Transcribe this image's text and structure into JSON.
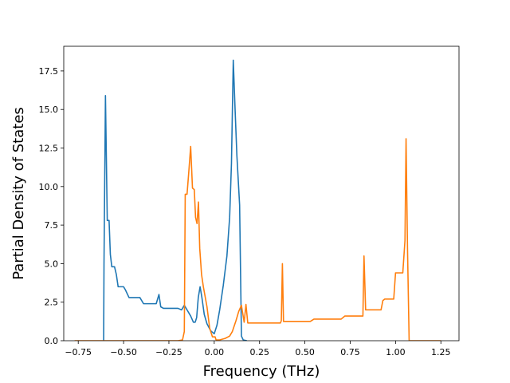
{
  "chart_data": {
    "type": "line",
    "title": "",
    "xlabel": "Frequency (THz)",
    "ylabel": "Partial Density of States",
    "xlim": [
      -0.83,
      1.35
    ],
    "ylim": [
      0,
      19.1
    ],
    "xticks": [
      -0.75,
      -0.5,
      -0.25,
      0.0,
      0.25,
      0.5,
      0.75,
      1.0,
      1.25
    ],
    "xtick_labels": [
      "−0.75",
      "−0.50",
      "−0.25",
      "0.00",
      "0.25",
      "0.50",
      "0.75",
      "1.00",
      "1.25"
    ],
    "yticks": [
      0,
      2.5,
      5,
      7.5,
      10,
      12.5,
      15,
      17.5
    ],
    "ytick_labels": [
      "0.0",
      "2.5",
      "5.0",
      "7.5",
      "10.0",
      "12.5",
      "15.0",
      "17.5"
    ],
    "grid": false,
    "legend": "none",
    "series": [
      {
        "color": "#1f77b4",
        "points": [
          [
            -0.61,
            0
          ],
          [
            -0.608,
            5
          ],
          [
            -0.6,
            15.9
          ],
          [
            -0.59,
            7.8
          ],
          [
            -0.58,
            7.8
          ],
          [
            -0.573,
            5.6
          ],
          [
            -0.565,
            4.8
          ],
          [
            -0.55,
            4.8
          ],
          [
            -0.54,
            4.3
          ],
          [
            -0.53,
            3.5
          ],
          [
            -0.5,
            3.5
          ],
          [
            -0.49,
            3.3
          ],
          [
            -0.47,
            2.8
          ],
          [
            -0.43,
            2.8
          ],
          [
            -0.41,
            2.8
          ],
          [
            -0.39,
            2.4
          ],
          [
            -0.36,
            2.4
          ],
          [
            -0.32,
            2.4
          ],
          [
            -0.305,
            3.0
          ],
          [
            -0.295,
            2.2
          ],
          [
            -0.28,
            2.1
          ],
          [
            -0.2,
            2.1
          ],
          [
            -0.18,
            2.0
          ],
          [
            -0.165,
            2.3
          ],
          [
            -0.15,
            2.0
          ],
          [
            -0.13,
            1.6
          ],
          [
            -0.115,
            1.2
          ],
          [
            -0.105,
            1.2
          ],
          [
            -0.097,
            1.5
          ],
          [
            -0.088,
            2.8
          ],
          [
            -0.078,
            3.5
          ],
          [
            -0.068,
            2.8
          ],
          [
            -0.055,
            1.7
          ],
          [
            -0.04,
            1.1
          ],
          [
            -0.02,
            0.65
          ],
          [
            0.0,
            0.45
          ],
          [
            0.015,
            1.0
          ],
          [
            0.03,
            2.0
          ],
          [
            0.05,
            3.6
          ],
          [
            0.07,
            5.5
          ],
          [
            0.085,
            8.0
          ],
          [
            0.095,
            11.5
          ],
          [
            0.105,
            18.2
          ],
          [
            0.115,
            15.0
          ],
          [
            0.125,
            12.0
          ],
          [
            0.14,
            8.8
          ],
          [
            0.15,
            0.3
          ],
          [
            0.16,
            0.05
          ],
          [
            0.18,
            0.0
          ]
        ]
      },
      {
        "color": "#ff7f0e",
        "points": [
          [
            -0.77,
            0
          ],
          [
            -0.62,
            0
          ],
          [
            -0.2,
            0
          ],
          [
            -0.175,
            0.05
          ],
          [
            -0.165,
            0.6
          ],
          [
            -0.16,
            9.5
          ],
          [
            -0.15,
            9.5
          ],
          [
            -0.14,
            11.0
          ],
          [
            -0.13,
            12.6
          ],
          [
            -0.12,
            9.9
          ],
          [
            -0.11,
            9.8
          ],
          [
            -0.103,
            8.0
          ],
          [
            -0.095,
            7.6
          ],
          [
            -0.087,
            9.0
          ],
          [
            -0.08,
            6.0
          ],
          [
            -0.07,
            4.3
          ],
          [
            -0.06,
            3.5
          ],
          [
            -0.04,
            2.2
          ],
          [
            -0.025,
            0.8
          ],
          [
            -0.01,
            0.25
          ],
          [
            0.005,
            0.25
          ],
          [
            0.01,
            0.05
          ],
          [
            0.03,
            0.05
          ],
          [
            0.06,
            0.15
          ],
          [
            0.085,
            0.3
          ],
          [
            0.1,
            0.6
          ],
          [
            0.12,
            1.3
          ],
          [
            0.135,
            1.9
          ],
          [
            0.15,
            2.3
          ],
          [
            0.165,
            1.2
          ],
          [
            0.175,
            2.35
          ],
          [
            0.185,
            1.15
          ],
          [
            0.25,
            1.15
          ],
          [
            0.365,
            1.15
          ],
          [
            0.37,
            1.3
          ],
          [
            0.376,
            5.0
          ],
          [
            0.382,
            1.25
          ],
          [
            0.5,
            1.25
          ],
          [
            0.53,
            1.25
          ],
          [
            0.55,
            1.4
          ],
          [
            0.6,
            1.4
          ],
          [
            0.7,
            1.4
          ],
          [
            0.72,
            1.6
          ],
          [
            0.82,
            1.6
          ],
          [
            0.826,
            5.5
          ],
          [
            0.835,
            2.0
          ],
          [
            0.86,
            2.0
          ],
          [
            0.92,
            2.0
          ],
          [
            0.93,
            2.6
          ],
          [
            0.94,
            2.7
          ],
          [
            0.99,
            2.7
          ],
          [
            1.0,
            4.4
          ],
          [
            1.04,
            4.4
          ],
          [
            1.052,
            6.5
          ],
          [
            1.058,
            13.1
          ],
          [
            1.066,
            6.0
          ],
          [
            1.075,
            0
          ],
          [
            1.25,
            0
          ]
        ]
      }
    ]
  }
}
